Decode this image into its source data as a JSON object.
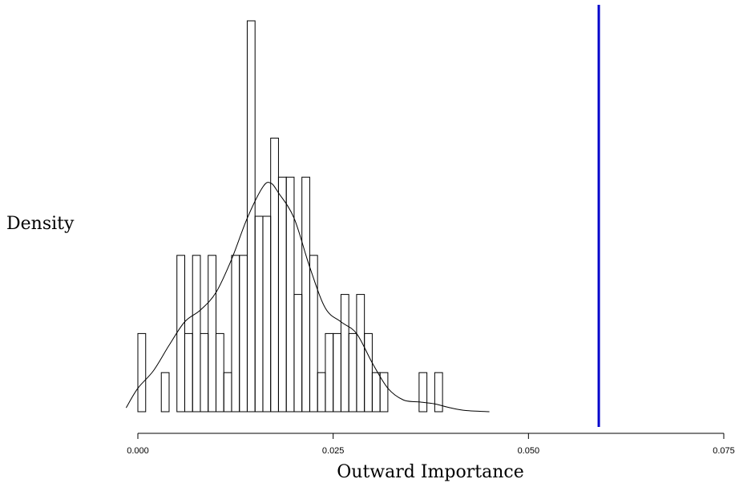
{
  "chart_data": {
    "type": "histogram",
    "xlabel": "Outward Importance",
    "ylabel": "Density",
    "xlim": [
      0.0,
      0.075
    ],
    "x_ticks": [
      "0.000",
      "0.025",
      "0.050",
      "0.075"
    ],
    "x_tick_values": [
      0.0,
      0.025,
      0.05,
      0.075
    ],
    "bin_width": 0.001,
    "bins": [
      {
        "start": 0.0,
        "count": 2
      },
      {
        "start": 0.003,
        "count": 1
      },
      {
        "start": 0.005,
        "count": 4
      },
      {
        "start": 0.006,
        "count": 2
      },
      {
        "start": 0.007,
        "count": 4
      },
      {
        "start": 0.008,
        "count": 2
      },
      {
        "start": 0.009,
        "count": 4
      },
      {
        "start": 0.01,
        "count": 2
      },
      {
        "start": 0.011,
        "count": 1
      },
      {
        "start": 0.012,
        "count": 4
      },
      {
        "start": 0.013,
        "count": 4
      },
      {
        "start": 0.014,
        "count": 10
      },
      {
        "start": 0.015,
        "count": 5
      },
      {
        "start": 0.016,
        "count": 5
      },
      {
        "start": 0.017,
        "count": 7
      },
      {
        "start": 0.018,
        "count": 6
      },
      {
        "start": 0.019,
        "count": 6
      },
      {
        "start": 0.02,
        "count": 3
      },
      {
        "start": 0.021,
        "count": 6
      },
      {
        "start": 0.022,
        "count": 4
      },
      {
        "start": 0.023,
        "count": 1
      },
      {
        "start": 0.024,
        "count": 2
      },
      {
        "start": 0.025,
        "count": 2
      },
      {
        "start": 0.026,
        "count": 3
      },
      {
        "start": 0.027,
        "count": 2
      },
      {
        "start": 0.028,
        "count": 3
      },
      {
        "start": 0.029,
        "count": 2
      },
      {
        "start": 0.03,
        "count": 1
      },
      {
        "start": 0.031,
        "count": 1
      },
      {
        "start": 0.036,
        "count": 1
      },
      {
        "start": 0.038,
        "count": 1
      }
    ],
    "density_curve": {
      "x": [
        -0.0015,
        0.0,
        0.002,
        0.004,
        0.006,
        0.008,
        0.01,
        0.012,
        0.014,
        0.016,
        0.017,
        0.018,
        0.02,
        0.022,
        0.024,
        0.026,
        0.028,
        0.03,
        0.032,
        0.034,
        0.036,
        0.038,
        0.04,
        0.042,
        0.045
      ],
      "y": [
        0.1,
        0.6,
        1.05,
        1.7,
        2.3,
        2.6,
        3.05,
        3.9,
        4.95,
        5.75,
        5.85,
        5.6,
        4.95,
        3.7,
        2.65,
        2.3,
        2.0,
        1.25,
        0.6,
        0.3,
        0.25,
        0.2,
        0.1,
        0.03,
        0.0
      ]
    },
    "reference_line": {
      "x": 0.059,
      "color": "#0000cc"
    }
  }
}
